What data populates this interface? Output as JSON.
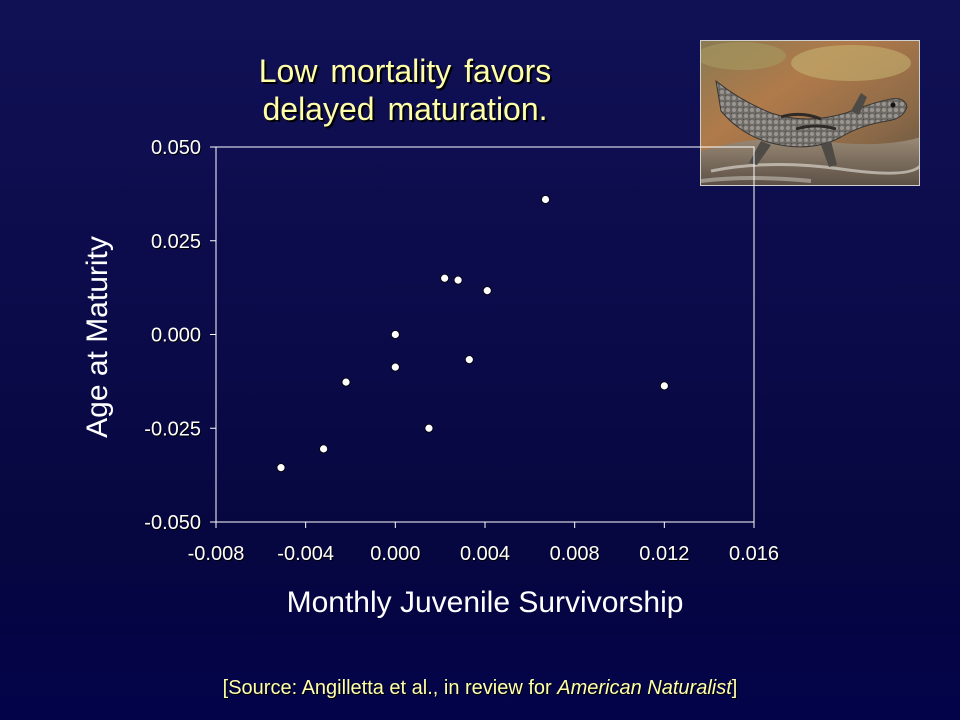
{
  "slide": {
    "title_line1": "Low mortality favors",
    "title_line2": "delayed maturation.",
    "source_prefix": "[Source: Angilletta et al., in review for ",
    "source_journal": "American Naturalist",
    "source_suffix": "]",
    "photo_icon": "lizard-photo",
    "colors": {
      "background": "#0b0b4a",
      "title_text": "#ffffaa",
      "axis_text": "#ffffff",
      "points": "#ffffff"
    }
  },
  "chart_data": {
    "type": "scatter",
    "title": "",
    "xlabel": "Monthly Juvenile Survivorship",
    "ylabel": "Age at Maturity",
    "xlim": [
      -0.008,
      0.016
    ],
    "ylim": [
      -0.05,
      0.05
    ],
    "x_ticks": [
      -0.008,
      -0.004,
      0.0,
      0.004,
      0.008,
      0.012,
      0.016
    ],
    "x_tick_labels": [
      "-0.008",
      "-0.004",
      "0.000",
      "0.004",
      "0.008",
      "0.012",
      "0.016"
    ],
    "y_ticks": [
      -0.05,
      -0.025,
      0.0,
      0.025,
      0.05
    ],
    "y_tick_labels": [
      "-0.050",
      "-0.025",
      "0.000",
      "0.025",
      "0.050"
    ],
    "grid": false,
    "legend": "none",
    "points": [
      {
        "x": -0.0051,
        "y": -0.0355
      },
      {
        "x": -0.0032,
        "y": -0.0305
      },
      {
        "x": -0.0022,
        "y": -0.0127
      },
      {
        "x": 0.0,
        "y": 0.0
      },
      {
        "x": 0.0,
        "y": -0.0087
      },
      {
        "x": 0.0015,
        "y": -0.025
      },
      {
        "x": 0.0022,
        "y": 0.015
      },
      {
        "x": 0.0028,
        "y": 0.0145
      },
      {
        "x": 0.0033,
        "y": -0.0067
      },
      {
        "x": 0.0041,
        "y": 0.0117
      },
      {
        "x": 0.0067,
        "y": 0.036
      },
      {
        "x": 0.012,
        "y": -0.0137
      }
    ]
  }
}
